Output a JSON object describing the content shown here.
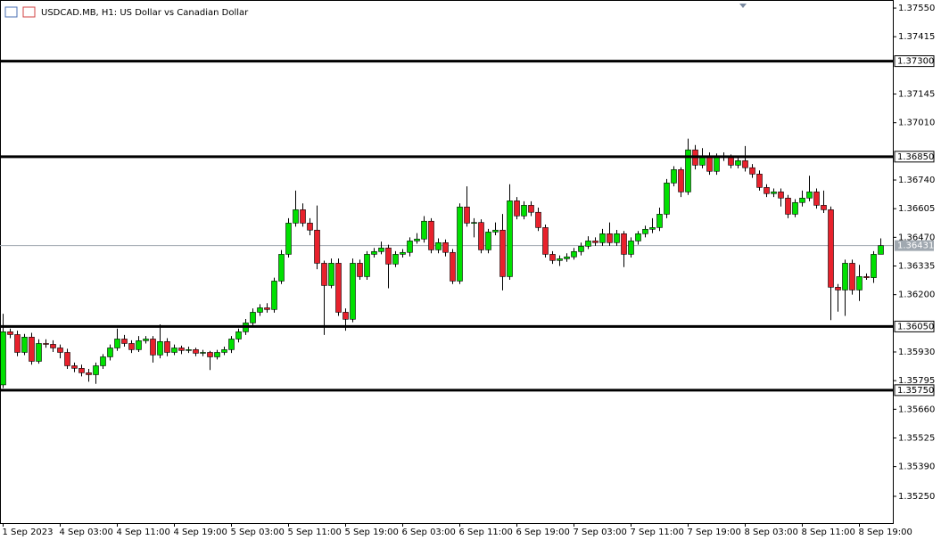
{
  "chart_data": {
    "type": "candlestick",
    "title": "USDCAD.MB, H1:  US Dollar vs Canadian Dollar",
    "bull_color": "#00e000",
    "bear_color": "#e8212c",
    "ylim": [
      1.35124,
      1.37588
    ],
    "yticks": [
      {
        "value": 1.3755,
        "label": "1.37550"
      },
      {
        "value": 1.37415,
        "label": "1.37415"
      },
      {
        "value": 1.37145,
        "label": "1.37145"
      },
      {
        "value": 1.3701,
        "label": "1.37010"
      },
      {
        "value": 1.3674,
        "label": "1.36740"
      },
      {
        "value": 1.36605,
        "label": "1.36605"
      },
      {
        "value": 1.3647,
        "label": "1.36470"
      },
      {
        "value": 1.36335,
        "label": "1.36335"
      },
      {
        "value": 1.362,
        "label": "1.36200"
      },
      {
        "value": 1.3593,
        "label": "1.35930"
      },
      {
        "value": 1.35795,
        "label": "1.35795"
      },
      {
        "value": 1.3566,
        "label": "1.35660"
      },
      {
        "value": 1.35525,
        "label": "1.35525"
      },
      {
        "value": 1.3539,
        "label": "1.35390"
      },
      {
        "value": 1.3525,
        "label": "1.35250"
      }
    ],
    "levels": [
      {
        "value": 1.373,
        "label": "1.37300"
      },
      {
        "value": 1.3685,
        "label": "1.36850"
      },
      {
        "value": 1.3605,
        "label": "1.36050"
      },
      {
        "value": 1.3575,
        "label": "1.35750"
      }
    ],
    "current_price": {
      "value": 1.36431,
      "label": "1.36431"
    },
    "x_labels": [
      "1 Sep 2023",
      "4 Sep 03:00",
      "4 Sep 11:00",
      "4 Sep 19:00",
      "5 Sep 03:00",
      "5 Sep 11:00",
      "5 Sep 19:00",
      "6 Sep 03:00",
      "6 Sep 11:00",
      "6 Sep 19:00",
      "7 Sep 03:00",
      "7 Sep 11:00",
      "7 Sep 19:00",
      "8 Sep 03:00",
      "8 Sep 11:00",
      "8 Sep 19:00"
    ],
    "ohlc": [
      [
        1.35775,
        1.3611,
        1.3576,
        1.36025
      ],
      [
        1.36025,
        1.3604,
        1.35995,
        1.36012
      ],
      [
        1.36012,
        1.3603,
        1.3591,
        1.35928
      ],
      [
        1.35928,
        1.36015,
        1.35915,
        1.36
      ],
      [
        1.36,
        1.3602,
        1.3587,
        1.35886
      ],
      [
        1.35886,
        1.3599,
        1.35875,
        1.3597
      ],
      [
        1.3597,
        1.3599,
        1.3595,
        1.35966
      ],
      [
        1.35966,
        1.35985,
        1.3593,
        1.35949
      ],
      [
        1.35949,
        1.35965,
        1.359,
        1.35928
      ],
      [
        1.35928,
        1.35945,
        1.3585,
        1.35865
      ],
      [
        1.35865,
        1.3588,
        1.35835,
        1.35853
      ],
      [
        1.35853,
        1.3587,
        1.35815,
        1.35832
      ],
      [
        1.35832,
        1.3585,
        1.3579,
        1.35823
      ],
      [
        1.35823,
        1.3588,
        1.3578,
        1.35865
      ],
      [
        1.35865,
        1.3592,
        1.3585,
        1.35907
      ],
      [
        1.35907,
        1.35965,
        1.3589,
        1.35949
      ],
      [
        1.35949,
        1.3604,
        1.35935,
        1.35991
      ],
      [
        1.35991,
        1.3601,
        1.35955,
        1.3597
      ],
      [
        1.3597,
        1.35985,
        1.35925,
        1.35941
      ],
      [
        1.35941,
        1.36005,
        1.3593,
        1.35983
      ],
      [
        1.35983,
        1.36005,
        1.3597,
        1.35991
      ],
      [
        1.35991,
        1.36005,
        1.3588,
        1.35916
      ],
      [
        1.35916,
        1.3606,
        1.359,
        1.35979
      ],
      [
        1.35979,
        1.35995,
        1.3591,
        1.35928
      ],
      [
        1.35928,
        1.35965,
        1.35915,
        1.35949
      ],
      [
        1.35949,
        1.3596,
        1.3592,
        1.35937
      ],
      [
        1.35937,
        1.35955,
        1.35925,
        1.35941
      ],
      [
        1.35941,
        1.3595,
        1.3591,
        1.35924
      ],
      [
        1.35924,
        1.3594,
        1.3591,
        1.35928
      ],
      [
        1.35928,
        1.35935,
        1.35845,
        1.35907
      ],
      [
        1.35907,
        1.3594,
        1.35895,
        1.35928
      ],
      [
        1.35928,
        1.35955,
        1.35915,
        1.35941
      ],
      [
        1.35941,
        1.36005,
        1.35925,
        1.35991
      ],
      [
        1.35991,
        1.3604,
        1.35975,
        1.36025
      ],
      [
        1.36025,
        1.36085,
        1.3601,
        1.36067
      ],
      [
        1.36067,
        1.36135,
        1.3605,
        1.36117
      ],
      [
        1.36117,
        1.36155,
        1.361,
        1.36138
      ],
      [
        1.36138,
        1.3616,
        1.36115,
        1.3613
      ],
      [
        1.3613,
        1.3628,
        1.36115,
        1.36264
      ],
      [
        1.36264,
        1.3641,
        1.3625,
        1.3639
      ],
      [
        1.3639,
        1.3656,
        1.36375,
        1.36537
      ],
      [
        1.36537,
        1.3669,
        1.3652,
        1.366
      ],
      [
        1.366,
        1.3663,
        1.3652,
        1.36537
      ],
      [
        1.36537,
        1.3656,
        1.3648,
        1.36504
      ],
      [
        1.36504,
        1.3662,
        1.3632,
        1.36348
      ],
      [
        1.36348,
        1.3636,
        1.3601,
        1.36243
      ],
      [
        1.36243,
        1.3637,
        1.3623,
        1.36348
      ],
      [
        1.36348,
        1.3637,
        1.361,
        1.36117
      ],
      [
        1.36117,
        1.36135,
        1.3603,
        1.36084
      ],
      [
        1.36084,
        1.3637,
        1.3607,
        1.36348
      ],
      [
        1.36348,
        1.36365,
        1.3627,
        1.36285
      ],
      [
        1.36285,
        1.36405,
        1.3627,
        1.3639
      ],
      [
        1.3639,
        1.3642,
        1.36375,
        1.36403
      ],
      [
        1.36403,
        1.3645,
        1.3639,
        1.3642
      ],
      [
        1.3642,
        1.36435,
        1.3623,
        1.36344
      ],
      [
        1.36344,
        1.36405,
        1.3633,
        1.3639
      ],
      [
        1.3639,
        1.36415,
        1.36375,
        1.36399
      ],
      [
        1.36399,
        1.3647,
        1.3638,
        1.36453
      ],
      [
        1.36453,
        1.3649,
        1.3644,
        1.36462
      ],
      [
        1.36462,
        1.3657,
        1.36445,
        1.36546
      ],
      [
        1.36546,
        1.3656,
        1.36395,
        1.36411
      ],
      [
        1.36411,
        1.36465,
        1.36395,
        1.36445
      ],
      [
        1.36445,
        1.3646,
        1.3638,
        1.36399
      ],
      [
        1.36399,
        1.36415,
        1.3625,
        1.36264
      ],
      [
        1.36264,
        1.3663,
        1.3625,
        1.36613
      ],
      [
        1.36613,
        1.3671,
        1.3652,
        1.36537
      ],
      [
        1.36537,
        1.3656,
        1.3647,
        1.3654
      ],
      [
        1.3654,
        1.36555,
        1.36395,
        1.36411
      ],
      [
        1.36411,
        1.3651,
        1.36395,
        1.36495
      ],
      [
        1.36495,
        1.3654,
        1.3648,
        1.36504
      ],
      [
        1.36504,
        1.3658,
        1.3622,
        1.36285
      ],
      [
        1.36285,
        1.3672,
        1.3627,
        1.36642
      ],
      [
        1.36642,
        1.3666,
        1.36555,
        1.36571
      ],
      [
        1.36571,
        1.3664,
        1.36555,
        1.36621
      ],
      [
        1.36621,
        1.3664,
        1.3657,
        1.36588
      ],
      [
        1.36588,
        1.3661,
        1.365,
        1.36516
      ],
      [
        1.36516,
        1.3653,
        1.36375,
        1.3639
      ],
      [
        1.3639,
        1.36405,
        1.36345,
        1.36361
      ],
      [
        1.36361,
        1.36385,
        1.36335,
        1.36369
      ],
      [
        1.36369,
        1.36395,
        1.36355,
        1.36378
      ],
      [
        1.36378,
        1.3642,
        1.36365,
        1.36403
      ],
      [
        1.36403,
        1.36445,
        1.36385,
        1.36428
      ],
      [
        1.36428,
        1.36475,
        1.36415,
        1.36453
      ],
      [
        1.36453,
        1.3647,
        1.3643,
        1.36445
      ],
      [
        1.36445,
        1.3651,
        1.3643,
        1.36487
      ],
      [
        1.36487,
        1.3654,
        1.3643,
        1.36445
      ],
      [
        1.36445,
        1.36505,
        1.3643,
        1.36487
      ],
      [
        1.36487,
        1.365,
        1.3633,
        1.3639
      ],
      [
        1.3639,
        1.3647,
        1.36375,
        1.36453
      ],
      [
        1.36453,
        1.365,
        1.36435,
        1.36487
      ],
      [
        1.36487,
        1.36525,
        1.3647,
        1.36508
      ],
      [
        1.36508,
        1.3656,
        1.3649,
        1.36516
      ],
      [
        1.36516,
        1.3661,
        1.365,
        1.36579
      ],
      [
        1.36579,
        1.36745,
        1.3656,
        1.36726
      ],
      [
        1.36726,
        1.36805,
        1.3671,
        1.36789
      ],
      [
        1.36789,
        1.368,
        1.3666,
        1.36684
      ],
      [
        1.36684,
        1.36935,
        1.3667,
        1.36882
      ],
      [
        1.36882,
        1.36905,
        1.3679,
        1.3681
      ],
      [
        1.3681,
        1.3689,
        1.36795,
        1.36852
      ],
      [
        1.36852,
        1.3687,
        1.36765,
        1.36781
      ],
      [
        1.36781,
        1.36865,
        1.36765,
        1.36852
      ],
      [
        1.36852,
        1.3687,
        1.3683,
        1.36848
      ],
      [
        1.36848,
        1.3686,
        1.36795,
        1.3681
      ],
      [
        1.3681,
        1.3685,
        1.36795,
        1.36831
      ],
      [
        1.36831,
        1.369,
        1.3678,
        1.36798
      ],
      [
        1.36798,
        1.36815,
        1.3675,
        1.36768
      ],
      [
        1.36768,
        1.36785,
        1.3669,
        1.36705
      ],
      [
        1.36705,
        1.3672,
        1.3666,
        1.36676
      ],
      [
        1.36676,
        1.367,
        1.3666,
        1.36684
      ],
      [
        1.36684,
        1.367,
        1.36615,
        1.36655
      ],
      [
        1.36655,
        1.3667,
        1.3656,
        1.36579
      ],
      [
        1.36579,
        1.3665,
        1.36565,
        1.36634
      ],
      [
        1.36634,
        1.3669,
        1.36615,
        1.36655
      ],
      [
        1.36655,
        1.3676,
        1.3664,
        1.36684
      ],
      [
        1.36684,
        1.367,
        1.36605,
        1.36621
      ],
      [
        1.36621,
        1.3669,
        1.36585,
        1.366
      ],
      [
        1.366,
        1.36615,
        1.3608,
        1.36235
      ],
      [
        1.36235,
        1.3625,
        1.3612,
        1.36222
      ],
      [
        1.36222,
        1.36365,
        1.361,
        1.36348
      ],
      [
        1.36348,
        1.36365,
        1.362,
        1.36222
      ],
      [
        1.36222,
        1.3634,
        1.3617,
        1.36285
      ],
      [
        1.36285,
        1.363,
        1.3627,
        1.3628
      ],
      [
        1.3628,
        1.36405,
        1.36255,
        1.3639
      ],
      [
        1.3639,
        1.36465,
        1.3639,
        1.36431
      ]
    ]
  }
}
